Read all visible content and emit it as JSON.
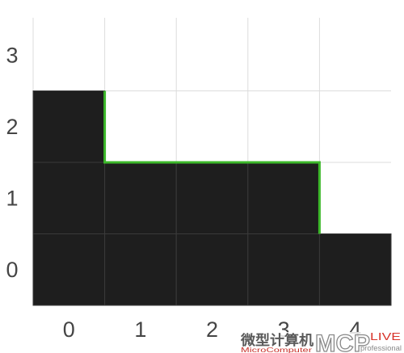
{
  "grid": {
    "columns": 5,
    "rows": 4,
    "filled_heights": [
      3,
      2,
      2,
      2,
      1
    ],
    "highlighted_columns": [
      1,
      2,
      3
    ],
    "fill_color": "#1e1e1e",
    "cell_border_color": "#3a3a3a",
    "line_color": "#dcdcdc",
    "outline_color": "#3cb82a"
  },
  "x_axis": {
    "ticks": [
      "0",
      "1",
      "2",
      "3",
      "4"
    ]
  },
  "y_axis": {
    "ticks": [
      "0",
      "1",
      "2",
      "3"
    ]
  },
  "watermark": {
    "cn": "微型计算机",
    "en": "MicroComputer",
    "logo": "MCP",
    "logo_sub": "LIVE",
    "tagline": "professional"
  }
}
